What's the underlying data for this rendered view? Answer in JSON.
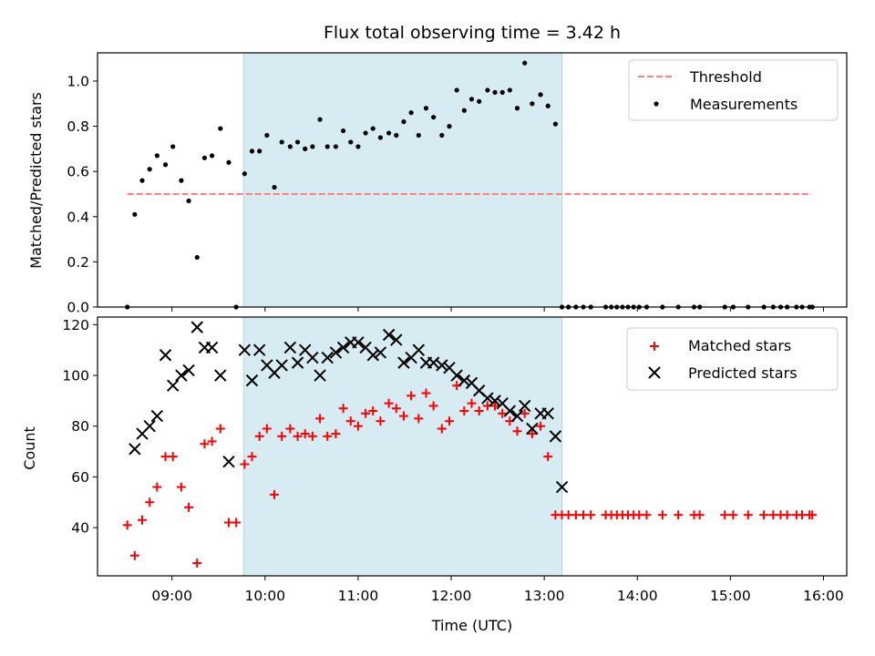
{
  "chart_data": [
    {
      "type": "scatter",
      "title": "Flux total observing time = 3.42 h",
      "xlabel": "",
      "ylabel": "Matched/Predicted stars",
      "x_unit": "hours UTC",
      "xlim": [
        8.2,
        16.25
      ],
      "ylim": [
        0,
        1.125
      ],
      "yticks": [
        0.0,
        0.2,
        0.4,
        0.6,
        0.8,
        1.0
      ],
      "ytick_labels": [
        "0.0",
        "0.2",
        "0.4",
        "0.6",
        "0.8",
        "1.0"
      ],
      "xticks": [
        9,
        10,
        11,
        12,
        13,
        14,
        15,
        16
      ],
      "grid": false,
      "legend_position": "top-right",
      "shaded_span": {
        "x": [
          9.77,
          13.19
        ],
        "color": "#add8e6"
      },
      "threshold": {
        "name": "Threshold",
        "value": 0.5,
        "x": [
          8.52,
          15.87
        ],
        "color": "#ff8080"
      },
      "series": [
        {
          "name": "Measurements",
          "color": "#000000",
          "x": [
            8.52,
            8.6,
            8.68,
            8.76,
            8.84,
            8.93,
            9.01,
            9.1,
            9.18,
            9.27,
            9.35,
            9.43,
            9.52,
            9.61,
            9.69,
            9.78,
            9.86,
            9.94,
            10.02,
            10.1,
            10.18,
            10.27,
            10.35,
            10.43,
            10.51,
            10.59,
            10.67,
            10.76,
            10.84,
            10.92,
            11.0,
            11.08,
            11.16,
            11.24,
            11.33,
            11.41,
            11.49,
            11.57,
            11.65,
            11.73,
            11.81,
            11.9,
            11.98,
            12.06,
            12.14,
            12.22,
            12.3,
            12.39,
            12.47,
            12.55,
            12.63,
            12.71,
            12.79,
            12.87,
            12.96,
            13.04,
            13.12,
            13.19,
            13.26,
            13.34,
            13.42,
            13.5,
            13.66,
            13.72,
            13.78,
            13.84,
            13.9,
            13.96,
            14.02,
            14.1,
            14.27,
            14.44,
            14.61,
            14.67,
            14.94,
            15.03,
            15.19,
            15.36,
            15.46,
            15.54,
            15.61,
            15.71,
            15.77,
            15.85,
            15.88
          ],
          "y": [
            0.0,
            0.41,
            0.56,
            0.61,
            0.67,
            0.63,
            0.71,
            0.56,
            0.47,
            0.22,
            0.66,
            0.67,
            0.79,
            0.64,
            0.0,
            0.59,
            0.69,
            0.69,
            0.76,
            0.53,
            0.73,
            0.71,
            0.73,
            0.7,
            0.71,
            0.83,
            0.71,
            0.71,
            0.78,
            0.73,
            0.71,
            0.77,
            0.79,
            0.75,
            0.77,
            0.76,
            0.82,
            0.86,
            0.76,
            0.88,
            0.84,
            0.76,
            0.8,
            0.96,
            0.87,
            0.92,
            0.91,
            0.96,
            0.95,
            0.95,
            0.96,
            0.88,
            1.08,
            0.9,
            0.94,
            0.89,
            0.81,
            0.0,
            0.0,
            0.0,
            0.0,
            0.0,
            0.0,
            0.0,
            0.0,
            0.0,
            0.0,
            0.0,
            0.0,
            0.0,
            0.0,
            0.0,
            0.0,
            0.0,
            0.0,
            0.0,
            0.0,
            0.0,
            0.0,
            0.0,
            0.0,
            0.0,
            0.0,
            0.0,
            0.0
          ]
        }
      ]
    },
    {
      "type": "scatter",
      "title": "",
      "xlabel": "Time (UTC)",
      "ylabel": "Count",
      "x_unit": "hours UTC",
      "xlim": [
        8.2,
        16.25
      ],
      "ylim": [
        21,
        123
      ],
      "yticks": [
        40,
        60,
        80,
        100,
        120
      ],
      "ytick_labels": [
        "40",
        "60",
        "80",
        "100",
        "120"
      ],
      "xticks": [
        9,
        10,
        11,
        12,
        13,
        14,
        15,
        16
      ],
      "xtick_labels": [
        "09:00",
        "10:00",
        "11:00",
        "12:00",
        "13:00",
        "14:00",
        "15:00",
        "16:00"
      ],
      "grid": false,
      "legend_position": "top-right",
      "shaded_span": {
        "x": [
          9.77,
          13.19
        ],
        "color": "#add8e6"
      },
      "series": [
        {
          "name": "Matched stars",
          "marker": "plus",
          "color": "#ff0000",
          "x": [
            8.52,
            8.6,
            8.68,
            8.76,
            8.84,
            8.93,
            9.01,
            9.1,
            9.18,
            9.27,
            9.35,
            9.43,
            9.52,
            9.61,
            9.69,
            9.78,
            9.86,
            9.94,
            10.02,
            10.1,
            10.18,
            10.27,
            10.35,
            10.43,
            10.51,
            10.59,
            10.67,
            10.76,
            10.84,
            10.92,
            11.0,
            11.08,
            11.16,
            11.24,
            11.33,
            11.41,
            11.49,
            11.57,
            11.65,
            11.73,
            11.81,
            11.9,
            11.98,
            12.06,
            12.14,
            12.22,
            12.3,
            12.39,
            12.47,
            12.55,
            12.63,
            12.71,
            12.79,
            12.87,
            12.96,
            13.04,
            13.12,
            13.19,
            13.26,
            13.34,
            13.42,
            13.5,
            13.66,
            13.72,
            13.78,
            13.84,
            13.9,
            13.96,
            14.02,
            14.1,
            14.27,
            14.44,
            14.61,
            14.67,
            14.94,
            15.03,
            15.19,
            15.36,
            15.46,
            15.54,
            15.61,
            15.71,
            15.77,
            15.85,
            15.88
          ],
          "y": [
            41,
            29,
            43,
            50,
            56,
            68,
            68,
            56,
            48,
            26,
            73,
            74,
            79,
            42,
            42,
            65,
            68,
            76,
            79,
            53,
            76,
            79,
            76,
            77,
            76,
            83,
            76,
            77,
            87,
            82,
            80,
            85,
            86,
            82,
            89,
            87,
            84,
            92,
            83,
            93,
            88,
            79,
            82,
            96,
            86,
            89,
            86,
            88,
            88,
            85,
            82,
            78,
            85,
            77,
            80,
            68,
            45,
            45,
            45,
            45,
            45,
            45,
            45,
            45,
            45,
            45,
            45,
            45,
            45,
            45,
            45,
            45,
            45,
            45,
            45,
            45,
            45,
            45,
            45,
            45,
            45,
            45,
            45,
            45,
            45
          ]
        },
        {
          "name": "Predicted stars",
          "marker": "x",
          "color": "#000000",
          "x": [
            8.6,
            8.68,
            8.76,
            8.84,
            8.93,
            9.01,
            9.1,
            9.18,
            9.27,
            9.35,
            9.43,
            9.52,
            9.61,
            9.78,
            9.86,
            9.94,
            10.02,
            10.1,
            10.18,
            10.27,
            10.35,
            10.43,
            10.51,
            10.59,
            10.67,
            10.76,
            10.84,
            10.92,
            11.0,
            11.08,
            11.16,
            11.24,
            11.33,
            11.41,
            11.49,
            11.57,
            11.65,
            11.73,
            11.81,
            11.9,
            11.98,
            12.06,
            12.14,
            12.22,
            12.3,
            12.39,
            12.47,
            12.55,
            12.63,
            12.71,
            12.79,
            12.87,
            12.96,
            13.04,
            13.12,
            13.19
          ],
          "y": [
            71,
            77,
            80,
            84,
            108,
            96,
            100,
            102,
            119,
            111,
            111,
            100,
            66,
            110,
            98,
            110,
            104,
            101,
            104,
            111,
            105,
            110,
            107,
            100,
            107,
            109,
            111,
            113,
            113,
            111,
            108,
            109,
            116,
            114,
            105,
            107,
            110,
            105,
            105,
            104,
            103,
            100,
            98,
            97,
            94,
            91,
            90,
            89,
            86,
            84,
            88,
            79,
            85,
            85,
            76,
            56
          ]
        }
      ]
    }
  ]
}
